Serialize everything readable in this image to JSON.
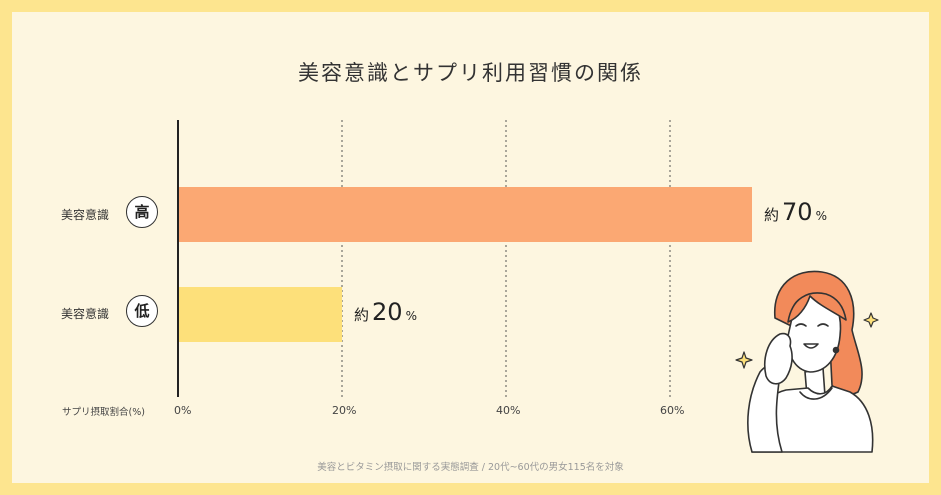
{
  "chart_data": {
    "type": "bar",
    "orientation": "horizontal",
    "title": "美容意識とサプリ利用習慣の関係",
    "categories": [
      {
        "label": "美容意識",
        "badge": "高"
      },
      {
        "label": "美容意識",
        "badge": "低"
      }
    ],
    "values": [
      70,
      20
    ],
    "value_labels": [
      {
        "prefix": "約",
        "number": "70",
        "unit": "%"
      },
      {
        "prefix": "約",
        "number": "20",
        "unit": "%"
      }
    ],
    "bar_colors": [
      "#fba873",
      "#fde07a"
    ],
    "xlabel": "サプリ摂取割合(%)",
    "xticks": [
      0,
      20,
      40,
      60
    ],
    "xtick_labels": [
      "0%",
      "20%",
      "40%",
      "60%"
    ],
    "xlim": [
      0,
      80
    ],
    "grid": "vertical dotted"
  },
  "source_note": "美容とビタミン摂取に関する実態調査 / 20代~60代の男女115名を対象",
  "illustration": "smiling-woman-with-sparkles"
}
